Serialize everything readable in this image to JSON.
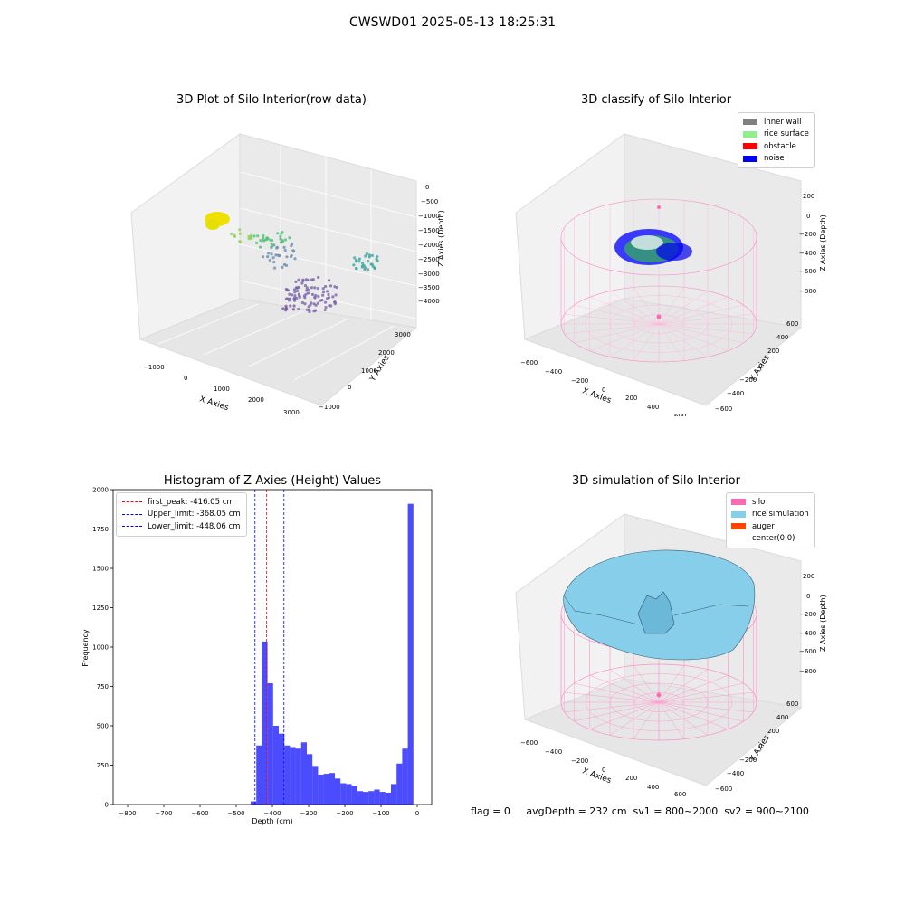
{
  "figure": {
    "suptitle": "CWSWD01 2025-05-13 18:25:31"
  },
  "panels": {
    "raw": {
      "title": "3D Plot of Silo Interior(row data)",
      "xlabel": "X Axies",
      "ylabel": "Y Axies",
      "zlabel": "Z Axies (Depth)",
      "xticks": [
        "−1000",
        "0",
        "1000",
        "2000",
        "3000"
      ],
      "yticks": [
        "−1000",
        "0",
        "1000",
        "2000",
        "3000"
      ],
      "zticks": [
        "0",
        "−500",
        "−1000",
        "−1500",
        "−2000",
        "−2500",
        "−3000",
        "−3500",
        "−4000"
      ]
    },
    "classify": {
      "title": "3D classify of Silo Interior",
      "xlabel": "X Axies",
      "ylabel": "Y Axies",
      "zlabel": "Z Axies (Depth)",
      "xticks": [
        "−600",
        "−400",
        "−200",
        "0",
        "200",
        "400",
        "600"
      ],
      "yticks": [
        "−600",
        "−400",
        "−200",
        "0",
        "200",
        "400",
        "600"
      ],
      "zticks": [
        "200",
        "0",
        "−200",
        "−400",
        "−600",
        "−800"
      ],
      "legend": [
        {
          "label": "inner wall",
          "color": "#808080"
        },
        {
          "label": "rice surface",
          "color": "#90ee90"
        },
        {
          "label": "obstacle",
          "color": "#ff0000"
        },
        {
          "label": "noise",
          "color": "#0000ff"
        }
      ]
    },
    "simulation": {
      "title": "3D simulation of Silo Interior",
      "xlabel": "X Axies",
      "ylabel": "Y Axies",
      "zlabel": "Z Axies (Depth)",
      "xticks": [
        "−600",
        "−400",
        "−200",
        "0",
        "200",
        "400",
        "600"
      ],
      "yticks": [
        "−600",
        "−400",
        "−200",
        "0",
        "200",
        "400",
        "600"
      ],
      "zticks": [
        "200",
        "0",
        "−200",
        "−400",
        "−600",
        "−800"
      ],
      "legend": [
        {
          "label": "silo",
          "color": "#ff69b4"
        },
        {
          "label": "rice simulation",
          "color": "#87ceeb"
        },
        {
          "label": "auger",
          "color": "#ff4500"
        },
        {
          "label": "center(0,0)",
          "color": "#ffffff"
        }
      ]
    }
  },
  "chart_data": [
    {
      "type": "bar",
      "title": "Histogram of Z-Axies (Height) Values",
      "xlabel": "Depth (cm)",
      "ylabel": "Frequency",
      "xlim": [
        -840,
        40
      ],
      "ylim": [
        0,
        2000
      ],
      "xticks": [
        "−800",
        "−700",
        "−600",
        "−500",
        "−400",
        "−300",
        "−200",
        "−100",
        "0"
      ],
      "yticks": [
        "0",
        "250",
        "500",
        "750",
        "1000",
        "1250",
        "1500",
        "1750",
        "2000"
      ],
      "bar_color": "#0000ff",
      "bin_width": 15.5,
      "bin_starts": [
        -460,
        -444.5,
        -429,
        -413.5,
        -398,
        -382.5,
        -367,
        -351.5,
        -336,
        -320.5,
        -305,
        -289.5,
        -274,
        -258.5,
        -243,
        -227.5,
        -212,
        -196.5,
        -181,
        -165.5,
        -150,
        -134.5,
        -119,
        -103.5,
        -88,
        -72.5,
        -57,
        -41.5,
        -26,
        -10.5
      ],
      "values": [
        20,
        375,
        1035,
        770,
        500,
        450,
        375,
        365,
        355,
        395,
        320,
        245,
        190,
        195,
        200,
        165,
        135,
        130,
        120,
        85,
        80,
        85,
        95,
        80,
        75,
        130,
        260,
        355,
        1910,
        0
      ],
      "lines": [
        {
          "label": "first_peak: -416.05 cm",
          "x": -416.05,
          "color": "#ff0000"
        },
        {
          "label": "Upper_limit: -368.05 cm",
          "x": -368.05,
          "color": "#0000ff"
        },
        {
          "label": "Lower_limit: -448.06 cm",
          "x": -448.06,
          "color": "#0000ff"
        }
      ],
      "legend_position": "upper-left"
    }
  ],
  "footer": {
    "text": "flag = 0     avgDepth = 232 cm  sv1 = 800~2000  sv2 = 900~2100"
  }
}
